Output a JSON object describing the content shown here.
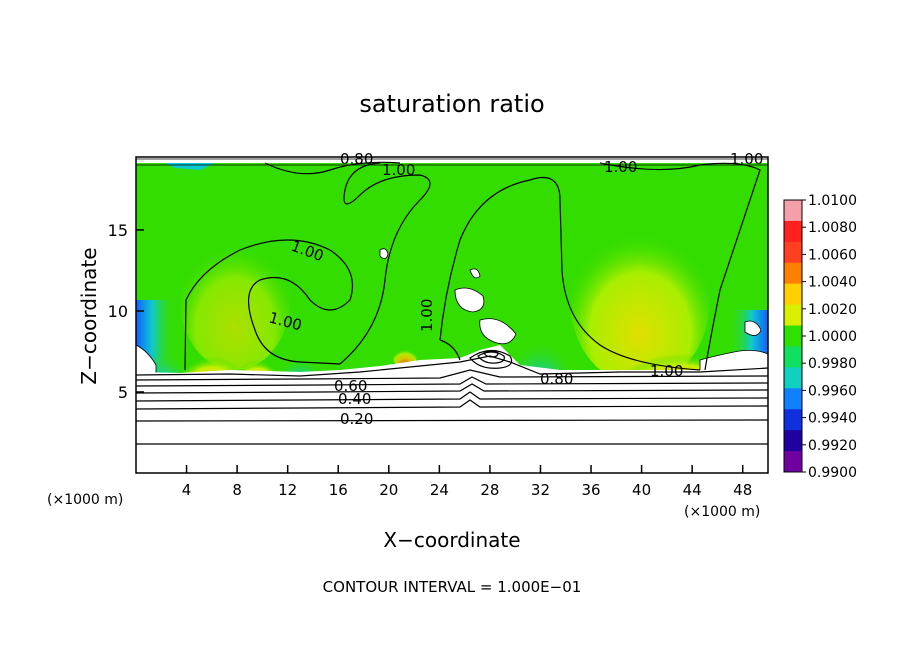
{
  "chart_data": {
    "type": "heatmap",
    "title": "saturation ratio",
    "xlabel": "X−coordinate",
    "ylabel": "Z−coordinate",
    "x_unit": "(×1000 m)",
    "z_unit": "(×1000 m)",
    "x_ticks": [
      4,
      8,
      12,
      16,
      20,
      24,
      28,
      32,
      36,
      40,
      44,
      48
    ],
    "y_ticks": [
      5,
      10,
      15
    ],
    "xlim": [
      0,
      50
    ],
    "ylim": [
      0,
      19.5
    ],
    "contour_interval_label": "CONTOUR INTERVAL = 1.000E−01",
    "contour_labels": [
      "0.20",
      "0.40",
      "0.60",
      "0.80",
      "0.80",
      "1.00",
      "1.00",
      "1.00",
      "1.00",
      "1.00",
      "1.00",
      "1.00"
    ],
    "colorbar": {
      "labels": [
        "1.0100",
        "1.0080",
        "1.0060",
        "1.0040",
        "1.0020",
        "1.0000",
        "0.9980",
        "0.9960",
        "0.9940",
        "0.9920",
        "0.9900"
      ],
      "colors": [
        "#f4a0a8",
        "#ff2020",
        "#ff4020",
        "#ff8000",
        "#ffd000",
        "#d8f000",
        "#30e000",
        "#10e060",
        "#10d0c0",
        "#1080ff",
        "#1030e0",
        "#2000a0",
        "#7000a0"
      ]
    },
    "colors": {
      "background_green": "#33dd00",
      "lower_layer": "#ffffff"
    }
  }
}
